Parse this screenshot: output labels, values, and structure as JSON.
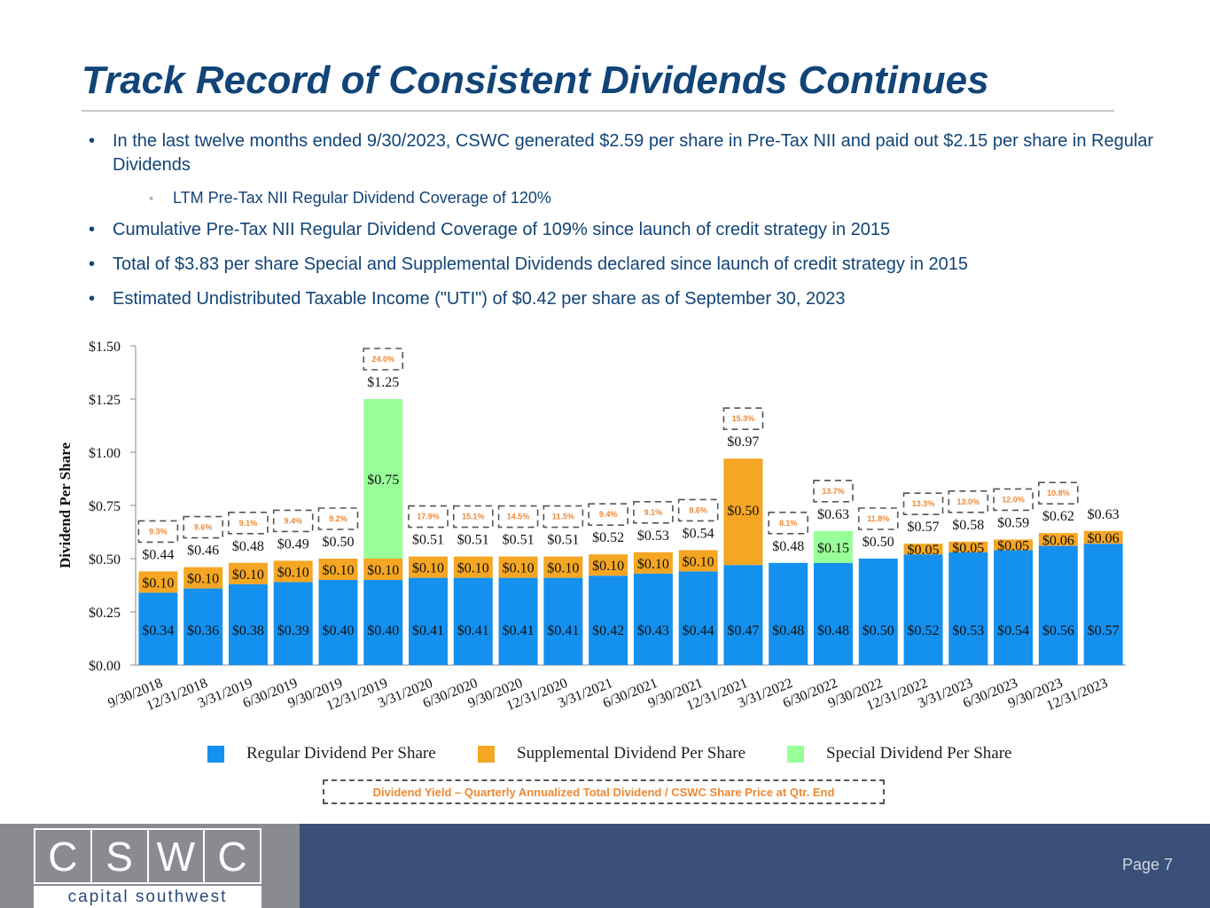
{
  "title": "Track Record of Consistent Dividends Continues",
  "bullet_glyph": "•",
  "sub_glyph": "◦",
  "bullets": [
    "In the last twelve months ended 9/30/2023, CSWC generated $2.59 per share in Pre-Tax NII and paid out $2.15 per share in Regular Dividends",
    "Cumulative Pre-Tax NII Regular Dividend Coverage of 109% since launch of credit strategy in 2015",
    "Total of $3.83 per share Special and Supplemental Dividends declared since launch of credit strategy in 2015",
    "Estimated Undistributed Taxable Income (\"UTI\") of $0.42 per share as of September 30, 2023"
  ],
  "sub_bullet": "LTM Pre-Tax NII Regular Dividend Coverage of 120%",
  "colors": {
    "regular": "#1490EE",
    "supplemental": "#F5A623",
    "special": "#99FF99",
    "title": "#114477",
    "yield": "#EE8833"
  },
  "legend": {
    "regular": "Regular Dividend Per Share",
    "supplemental": "Supplemental Dividend Per Share",
    "special": "Special Dividend Per Share"
  },
  "yield_note": "Dividend Yield – Quarterly Annualized Total Dividend / CSWC Share Price at Qtr. End",
  "footer": {
    "logo_letters": [
      "C",
      "S",
      "W",
      "C"
    ],
    "logo_tagline": "capital southwest",
    "page": "Page 7"
  },
  "chart_data": {
    "type": "bar",
    "stacked": true,
    "ylabel": "Dividend Per Share",
    "ylim": [
      0,
      1.5
    ],
    "yticks": [
      "$0.00",
      "$0.25",
      "$0.50",
      "$0.75",
      "$1.00",
      "$1.25",
      "$1.50"
    ],
    "ytick_values": [
      0,
      0.25,
      0.5,
      0.75,
      1.0,
      1.25,
      1.5
    ],
    "categories": [
      "9/30/2018",
      "12/31/2018",
      "3/31/2019",
      "6/30/2019",
      "9/30/2019",
      "12/31/2019",
      "3/31/2020",
      "6/30/2020",
      "9/30/2020",
      "12/31/2020",
      "3/31/2021",
      "6/30/2021",
      "9/30/2021",
      "12/31/2021",
      "3/31/2022",
      "6/30/2022",
      "9/30/2022",
      "12/31/2022",
      "3/31/2023",
      "6/30/2023",
      "9/30/2023",
      "12/31/2023"
    ],
    "series": [
      {
        "name": "Regular Dividend Per Share",
        "key": "regular",
        "values": [
          0.34,
          0.36,
          0.38,
          0.39,
          0.4,
          0.4,
          0.41,
          0.41,
          0.41,
          0.41,
          0.42,
          0.43,
          0.44,
          0.47,
          0.48,
          0.48,
          0.5,
          0.52,
          0.53,
          0.54,
          0.56,
          0.57
        ]
      },
      {
        "name": "Supplemental Dividend Per Share",
        "key": "supplemental",
        "values": [
          0.1,
          0.1,
          0.1,
          0.1,
          0.1,
          0.1,
          0.1,
          0.1,
          0.1,
          0.1,
          0.1,
          0.1,
          0.1,
          0.5,
          0,
          0,
          0,
          0.05,
          0.05,
          0.05,
          0.06,
          0.06
        ]
      },
      {
        "name": "Special Dividend Per Share",
        "key": "special",
        "values": [
          0,
          0,
          0,
          0,
          0,
          0.75,
          0,
          0,
          0,
          0,
          0,
          0,
          0,
          0,
          0,
          0.15,
          0,
          0,
          0,
          0,
          0,
          0
        ]
      }
    ],
    "regular_labels": [
      "$0.34",
      "$0.36",
      "$0.38",
      "$0.39",
      "$0.40",
      "$0.40",
      "$0.41",
      "$0.41",
      "$0.41",
      "$0.41",
      "$0.42",
      "$0.43",
      "$0.44",
      "$0.47",
      "$0.48",
      "$0.48",
      "$0.50",
      "$0.52",
      "$0.53",
      "$0.54",
      "$0.56",
      "$0.57"
    ],
    "supplemental_labels": [
      "$0.10",
      "$0.10",
      "$0.10",
      "$0.10",
      "$0.10",
      "$0.10",
      "$0.10",
      "$0.10",
      "$0.10",
      "$0.10",
      "$0.10",
      "$0.10",
      "$0.10",
      "$0.50",
      "",
      "",
      "",
      "$0.05",
      "$0.05",
      "$0.05",
      "$0.06",
      "$0.06"
    ],
    "special_labels": [
      "",
      "",
      "",
      "",
      "",
      "$0.75",
      "",
      "",
      "",
      "",
      "",
      "",
      "",
      "",
      "",
      "$0.15",
      "",
      "",
      "",
      "",
      "",
      ""
    ],
    "total_labels": [
      "$0.44",
      "$0.46",
      "$0.48",
      "$0.49",
      "$0.50",
      "$1.25",
      "$0.51",
      "$0.51",
      "$0.51",
      "$0.51",
      "$0.52",
      "$0.53",
      "$0.54",
      "$0.97",
      "$0.48",
      "$0.63",
      "$0.50",
      "$0.57",
      "$0.58",
      "$0.59",
      "$0.62",
      "$0.63"
    ],
    "totals": [
      0.44,
      0.46,
      0.48,
      0.49,
      0.5,
      1.25,
      0.51,
      0.51,
      0.51,
      0.51,
      0.52,
      0.53,
      0.54,
      0.97,
      0.48,
      0.63,
      0.5,
      0.57,
      0.58,
      0.59,
      0.62,
      0.63
    ],
    "yield_labels": [
      "9.3%",
      "9.6%",
      "9.1%",
      "9.4%",
      "9.2%",
      "24.0%",
      "17.9%",
      "15.1%",
      "14.5%",
      "11.5%",
      "9.4%",
      "9.1%",
      "8.6%",
      "15.3%",
      "8.1%",
      "13.7%",
      "11.8%",
      "13.3%",
      "13.0%",
      "12.0%",
      "10.8%",
      ""
    ]
  }
}
